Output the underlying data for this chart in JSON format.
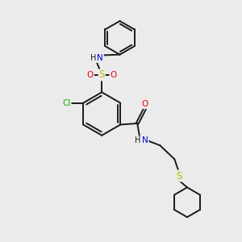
{
  "background_color": "#ebebeb",
  "bond_color": "#1a1a1a",
  "bond_width": 1.4,
  "atom_colors": {
    "C": "#1a1a1a",
    "N": "#0000ee",
    "O": "#ee0000",
    "S": "#bbbb00",
    "Cl": "#00bb00",
    "H": "#1a1a1a"
  },
  "font_size": 7.5,
  "fig_width": 3.0,
  "fig_height": 3.0,
  "dpi": 100,
  "xlim": [
    0,
    10
  ],
  "ylim": [
    0,
    10
  ]
}
